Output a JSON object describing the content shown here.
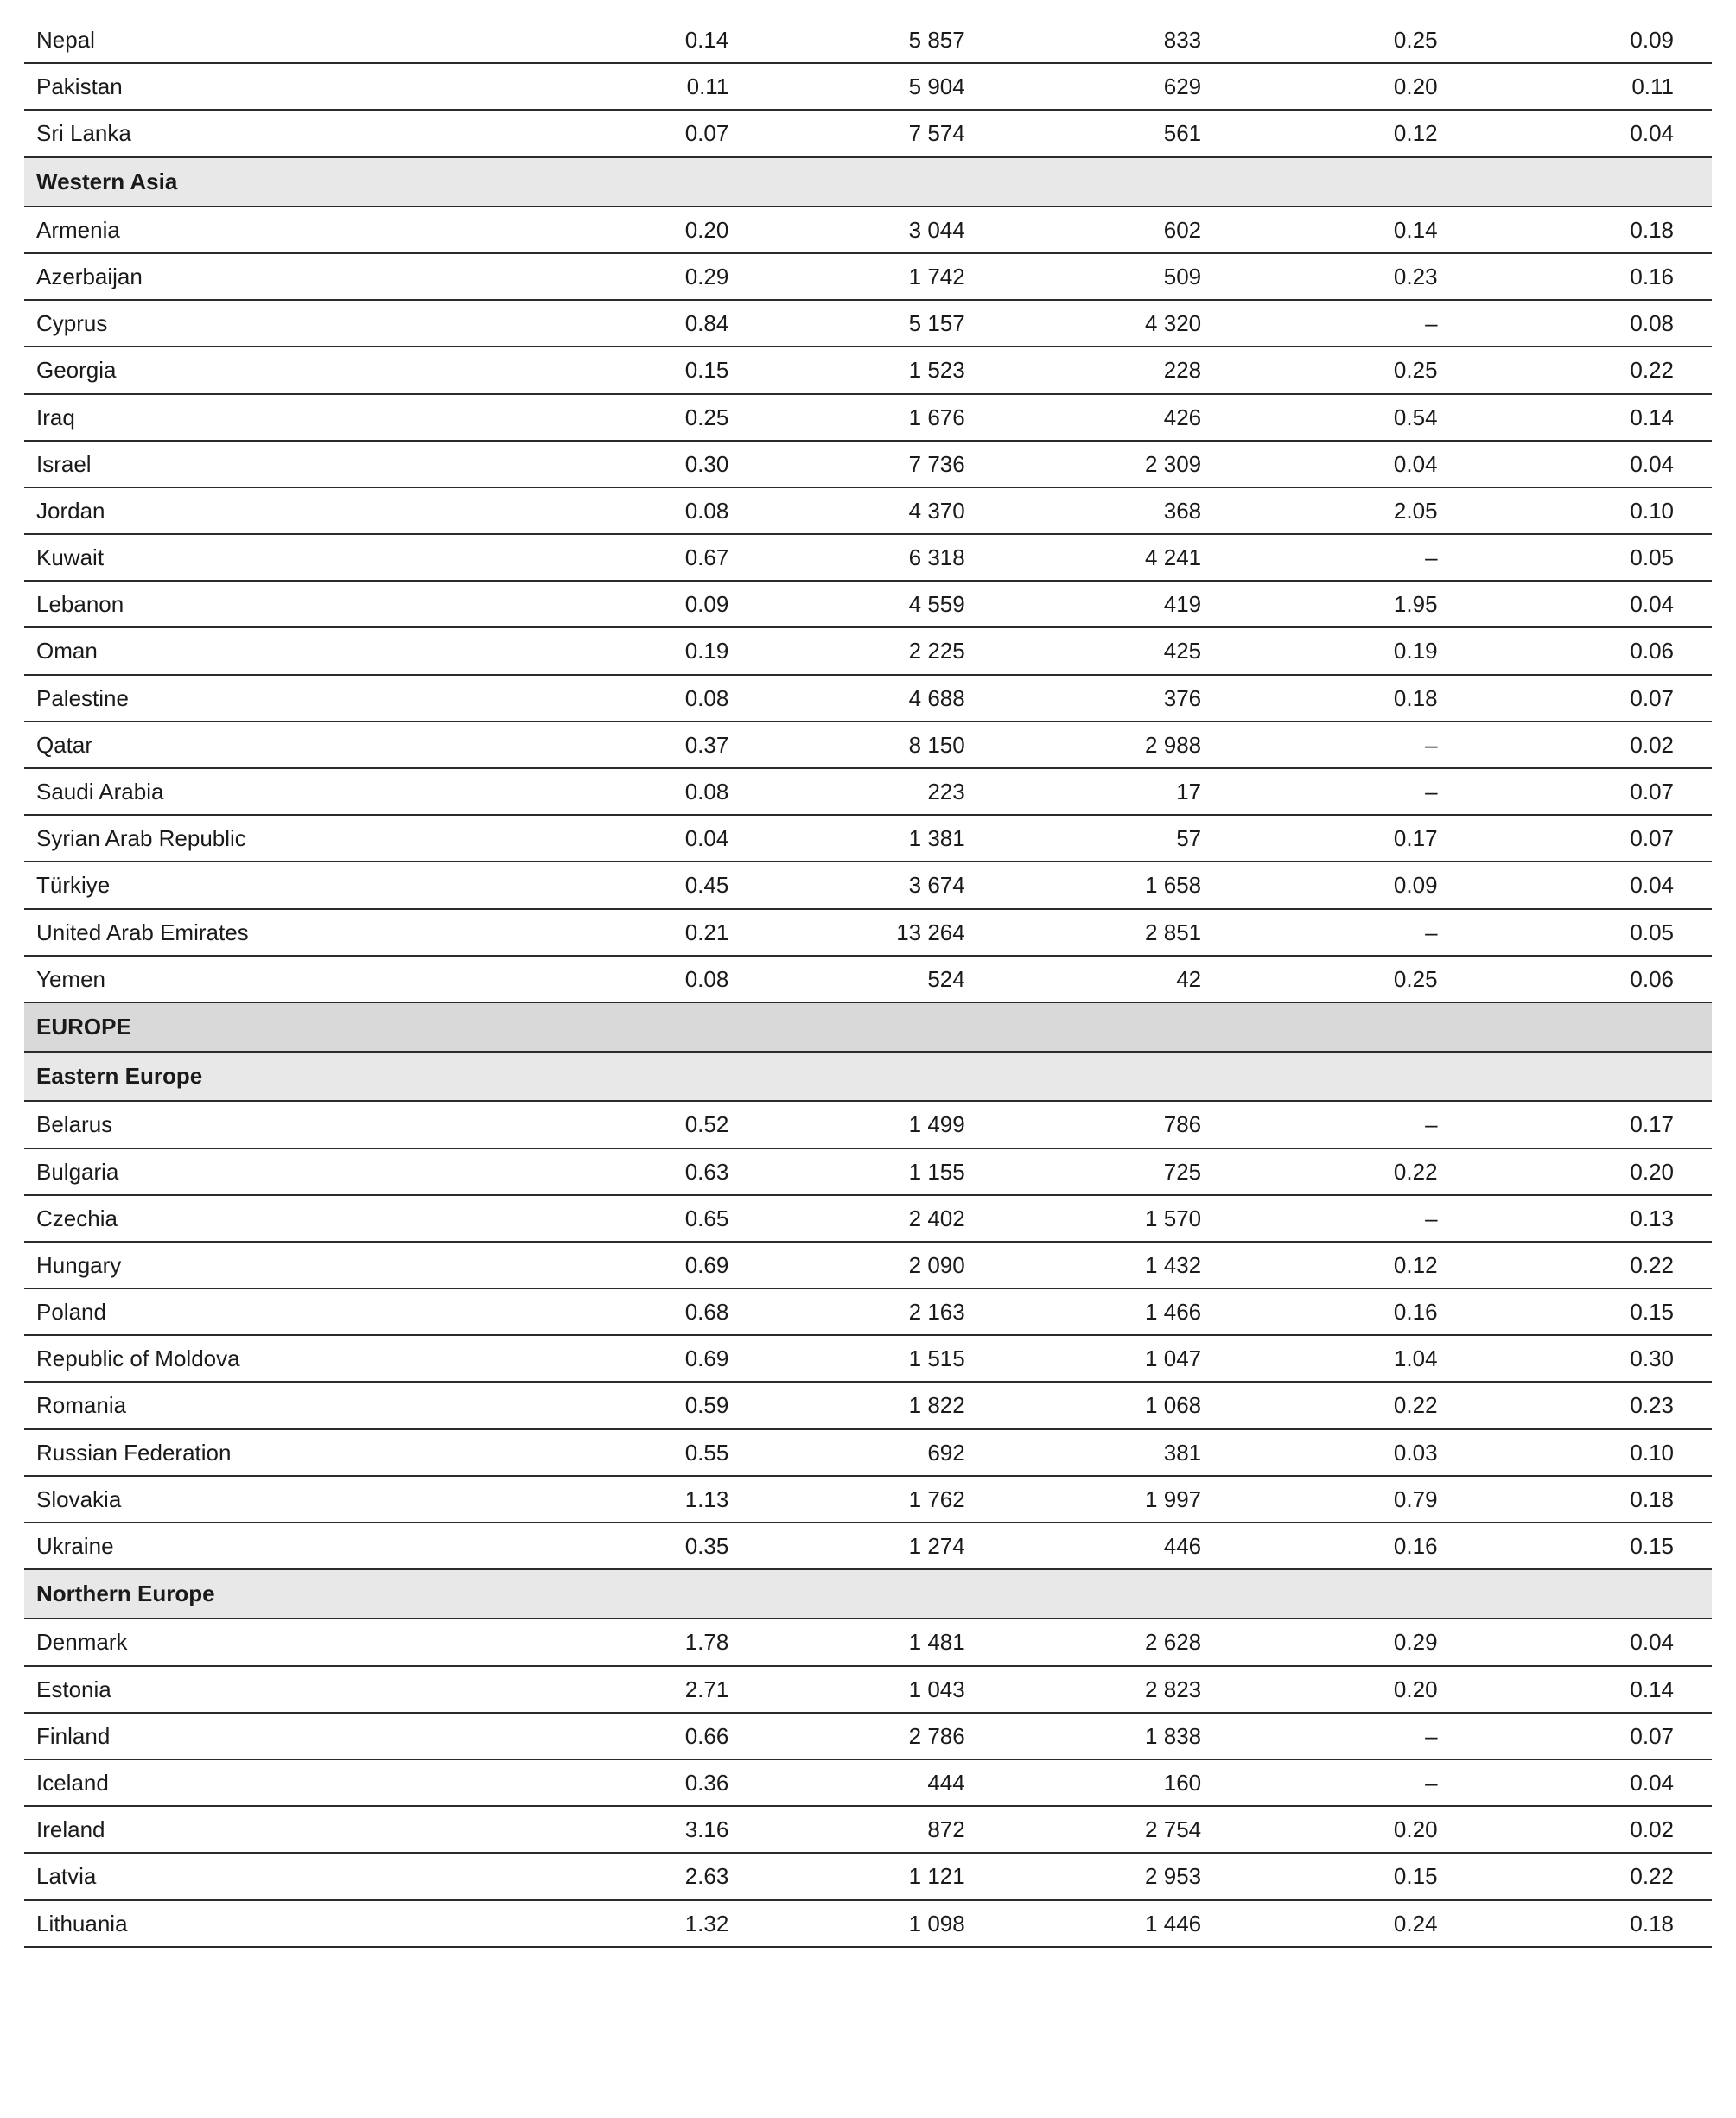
{
  "table": {
    "columns": [
      "name",
      "c1",
      "c2",
      "c3",
      "c4",
      "c5"
    ],
    "col_align": {
      "name": "left",
      "c1": "right",
      "c2": "right",
      "c3": "right",
      "c4": "right",
      "c5": "right"
    },
    "row_border_color": "#2b2b2b",
    "section_major_bg": "#d9d9d9",
    "section_minor_bg": "#e8e8e8",
    "font_size_pt": 20,
    "rows": [
      {
        "type": "data",
        "name": "Nepal",
        "c1": "0.14",
        "c2": "5 857",
        "c3": "833",
        "c4": "0.25",
        "c5": "0.09"
      },
      {
        "type": "data",
        "name": "Pakistan",
        "c1": "0.11",
        "c2": "5 904",
        "c3": "629",
        "c4": "0.20",
        "c5": "0.11"
      },
      {
        "type": "data",
        "name": "Sri Lanka",
        "c1": "0.07",
        "c2": "7 574",
        "c3": "561",
        "c4": "0.12",
        "c5": "0.04"
      },
      {
        "type": "section-minor",
        "name": "Western Asia"
      },
      {
        "type": "data",
        "name": "Armenia",
        "c1": "0.20",
        "c2": "3 044",
        "c3": "602",
        "c4": "0.14",
        "c5": "0.18"
      },
      {
        "type": "data",
        "name": "Azerbaijan",
        "c1": "0.29",
        "c2": "1 742",
        "c3": "509",
        "c4": "0.23",
        "c5": "0.16"
      },
      {
        "type": "data",
        "name": "Cyprus",
        "c1": "0.84",
        "c2": "5 157",
        "c3": "4 320",
        "c4": "–",
        "c5": "0.08"
      },
      {
        "type": "data",
        "name": "Georgia",
        "c1": "0.15",
        "c2": "1 523",
        "c3": "228",
        "c4": "0.25",
        "c5": "0.22"
      },
      {
        "type": "data",
        "name": "Iraq",
        "c1": "0.25",
        "c2": "1 676",
        "c3": "426",
        "c4": "0.54",
        "c5": "0.14"
      },
      {
        "type": "data",
        "name": "Israel",
        "c1": "0.30",
        "c2": "7 736",
        "c3": "2 309",
        "c4": "0.04",
        "c5": "0.04"
      },
      {
        "type": "data",
        "name": "Jordan",
        "c1": "0.08",
        "c2": "4 370",
        "c3": "368",
        "c4": "2.05",
        "c5": "0.10"
      },
      {
        "type": "data",
        "name": "Kuwait",
        "c1": "0.67",
        "c2": "6 318",
        "c3": "4 241",
        "c4": "–",
        "c5": "0.05"
      },
      {
        "type": "data",
        "name": "Lebanon",
        "c1": "0.09",
        "c2": "4 559",
        "c3": "419",
        "c4": "1.95",
        "c5": "0.04"
      },
      {
        "type": "data",
        "name": "Oman",
        "c1": "0.19",
        "c2": "2 225",
        "c3": "425",
        "c4": "0.19",
        "c5": "0.06"
      },
      {
        "type": "data",
        "name": "Palestine",
        "c1": "0.08",
        "c2": "4 688",
        "c3": "376",
        "c4": "0.18",
        "c5": "0.07"
      },
      {
        "type": "data",
        "name": "Qatar",
        "c1": "0.37",
        "c2": "8 150",
        "c3": "2 988",
        "c4": "–",
        "c5": "0.02"
      },
      {
        "type": "data",
        "name": "Saudi Arabia",
        "c1": "0.08",
        "c2": "223",
        "c3": "17",
        "c4": "–",
        "c5": "0.07"
      },
      {
        "type": "data",
        "name": "Syrian Arab Republic",
        "c1": "0.04",
        "c2": "1 381",
        "c3": "57",
        "c4": "0.17",
        "c5": "0.07"
      },
      {
        "type": "data",
        "name": "Türkiye",
        "c1": "0.45",
        "c2": "3 674",
        "c3": "1 658",
        "c4": "0.09",
        "c5": "0.04"
      },
      {
        "type": "data",
        "name": "United Arab Emirates",
        "c1": "0.21",
        "c2": "13 264",
        "c3": "2 851",
        "c4": "–",
        "c5": "0.05"
      },
      {
        "type": "data",
        "name": "Yemen",
        "c1": "0.08",
        "c2": "524",
        "c3": "42",
        "c4": "0.25",
        "c5": "0.06"
      },
      {
        "type": "section-major",
        "name": "EUROPE"
      },
      {
        "type": "section-minor",
        "name": "Eastern Europe"
      },
      {
        "type": "data",
        "name": "Belarus",
        "c1": "0.52",
        "c2": "1 499",
        "c3": "786",
        "c4": "–",
        "c5": "0.17"
      },
      {
        "type": "data",
        "name": "Bulgaria",
        "c1": "0.63",
        "c2": "1 155",
        "c3": "725",
        "c4": "0.22",
        "c5": "0.20"
      },
      {
        "type": "data",
        "name": "Czechia",
        "c1": "0.65",
        "c2": "2 402",
        "c3": "1 570",
        "c4": "–",
        "c5": "0.13"
      },
      {
        "type": "data",
        "name": "Hungary",
        "c1": "0.69",
        "c2": "2 090",
        "c3": "1 432",
        "c4": "0.12",
        "c5": "0.22"
      },
      {
        "type": "data",
        "name": "Poland",
        "c1": "0.68",
        "c2": "2 163",
        "c3": "1 466",
        "c4": "0.16",
        "c5": "0.15"
      },
      {
        "type": "data",
        "name": "Republic of Moldova",
        "c1": "0.69",
        "c2": "1 515",
        "c3": "1 047",
        "c4": "1.04",
        "c5": "0.30"
      },
      {
        "type": "data",
        "name": "Romania",
        "c1": "0.59",
        "c2": "1 822",
        "c3": "1 068",
        "c4": "0.22",
        "c5": "0.23"
      },
      {
        "type": "data",
        "name": "Russian Federation",
        "c1": "0.55",
        "c2": "692",
        "c3": "381",
        "c4": "0.03",
        "c5": "0.10"
      },
      {
        "type": "data",
        "name": "Slovakia",
        "c1": "1.13",
        "c2": "1 762",
        "c3": "1 997",
        "c4": "0.79",
        "c5": "0.18"
      },
      {
        "type": "data",
        "name": "Ukraine",
        "c1": "0.35",
        "c2": "1 274",
        "c3": "446",
        "c4": "0.16",
        "c5": "0.15"
      },
      {
        "type": "section-minor",
        "name": "Northern Europe"
      },
      {
        "type": "data",
        "name": "Denmark",
        "c1": "1.78",
        "c2": "1 481",
        "c3": "2 628",
        "c4": "0.29",
        "c5": "0.04"
      },
      {
        "type": "data",
        "name": "Estonia",
        "c1": "2.71",
        "c2": "1 043",
        "c3": "2 823",
        "c4": "0.20",
        "c5": "0.14"
      },
      {
        "type": "data",
        "name": "Finland",
        "c1": "0.66",
        "c2": "2 786",
        "c3": "1 838",
        "c4": "–",
        "c5": "0.07"
      },
      {
        "type": "data",
        "name": "Iceland",
        "c1": "0.36",
        "c2": "444",
        "c3": "160",
        "c4": "–",
        "c5": "0.04"
      },
      {
        "type": "data",
        "name": "Ireland",
        "c1": "3.16",
        "c2": "872",
        "c3": "2 754",
        "c4": "0.20",
        "c5": "0.02"
      },
      {
        "type": "data",
        "name": "Latvia",
        "c1": "2.63",
        "c2": "1 121",
        "c3": "2 953",
        "c4": "0.15",
        "c5": "0.22"
      },
      {
        "type": "data",
        "name": "Lithuania",
        "c1": "1.32",
        "c2": "1 098",
        "c3": "1 446",
        "c4": "0.24",
        "c5": "0.18"
      }
    ]
  }
}
